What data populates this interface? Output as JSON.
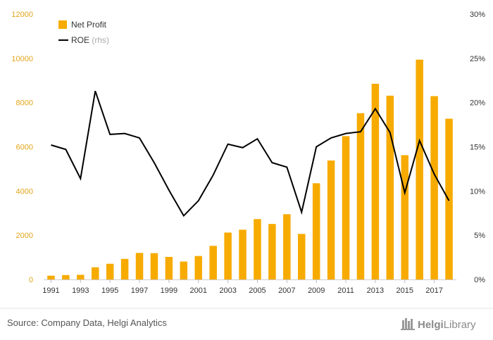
{
  "chart_data": {
    "type": "bar",
    "title": "",
    "xlabel": "",
    "ylabel": "",
    "categories": [
      "1991",
      "1992",
      "1993",
      "1994",
      "1995",
      "1996",
      "1997",
      "1998",
      "1999",
      "2000",
      "2001",
      "2002",
      "2003",
      "2004",
      "2005",
      "2006",
      "2007",
      "2008",
      "2009",
      "2010",
      "2011",
      "2012",
      "2013",
      "2014",
      "2015",
      "2016",
      "2017",
      "2018"
    ],
    "x_tick_labels": [
      "1991",
      "1993",
      "1995",
      "1997",
      "1999",
      "2001",
      "2003",
      "2005",
      "2007",
      "2009",
      "2011",
      "2013",
      "2015",
      "2017"
    ],
    "ylim": [
      0,
      12000
    ],
    "y_ticks": [
      "0",
      "2000",
      "4000",
      "6000",
      "8000",
      "10000",
      "12000"
    ],
    "y2lim": [
      0,
      30
    ],
    "y2_ticks": [
      "0%",
      "5%",
      "10%",
      "15%",
      "20%",
      "25%",
      "30%"
    ],
    "series": [
      {
        "name": "Net Profit",
        "type": "bar",
        "axis": "left",
        "color": "#f7ab00",
        "values": [
          170,
          200,
          210,
          550,
          710,
          930,
          1200,
          1190,
          1020,
          810,
          1060,
          1520,
          2120,
          2250,
          2730,
          2510,
          2950,
          2060,
          4350,
          5380,
          6480,
          7520,
          8850,
          8310,
          5620,
          9940,
          8290,
          7270
        ]
      },
      {
        "name": "ROE",
        "name_suffix": "(rhs)",
        "type": "line",
        "axis": "right",
        "color": "#000000",
        "values": [
          15.2,
          14.7,
          11.4,
          21.3,
          16.4,
          16.5,
          16.0,
          13.2,
          10.1,
          7.2,
          8.9,
          11.8,
          15.3,
          14.9,
          15.9,
          13.2,
          12.7,
          7.6,
          15.0,
          16.0,
          16.5,
          16.7,
          19.3,
          16.6,
          9.8,
          15.7,
          11.9,
          8.9
        ]
      }
    ],
    "legend_position": "top-left",
    "grid": false
  },
  "footer": {
    "source": "Source: Company Data, Helgi Analytics",
    "brand": "HelgiLibrary",
    "brand_prefix": "Helgi",
    "brand_suffix": "Library"
  }
}
